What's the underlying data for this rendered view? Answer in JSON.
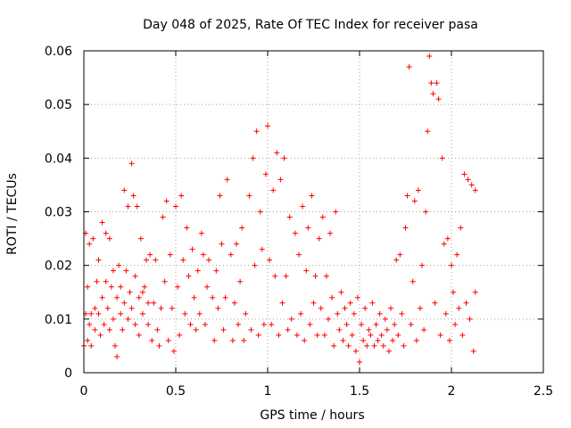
{
  "chart_data": {
    "type": "scatter",
    "title": "Day 048 of 2025, Rate Of TEC Index for receiver pasa",
    "xlabel": "GPS time / hours",
    "ylabel": "ROTI / TECUs",
    "xlim": [
      0,
      2.5
    ],
    "ylim": [
      0,
      0.06
    ],
    "xticks": [
      "0",
      "0.5",
      "1",
      "1.5",
      "2",
      "2.5"
    ],
    "yticks": [
      "0",
      "0.01",
      "0.02",
      "0.03",
      "0.04",
      "0.05",
      "0.06"
    ],
    "grid": true,
    "marker": "plus",
    "color": "#ff0000",
    "series": [
      {
        "points": [
          [
            0.0,
            0.005
          ],
          [
            0.01,
            0.011
          ],
          [
            0.01,
            0.026
          ],
          [
            0.02,
            0.016
          ],
          [
            0.02,
            0.006
          ],
          [
            0.03,
            0.009
          ],
          [
            0.03,
            0.024
          ],
          [
            0.04,
            0.011
          ],
          [
            0.04,
            0.005
          ],
          [
            0.05,
            0.025
          ],
          [
            0.06,
            0.012
          ],
          [
            0.06,
            0.008
          ],
          [
            0.07,
            0.017
          ],
          [
            0.08,
            0.011
          ],
          [
            0.08,
            0.021
          ],
          [
            0.09,
            0.007
          ],
          [
            0.1,
            0.014
          ],
          [
            0.1,
            0.028
          ],
          [
            0.11,
            0.009
          ],
          [
            0.12,
            0.017
          ],
          [
            0.12,
            0.026
          ],
          [
            0.13,
            0.012
          ],
          [
            0.14,
            0.008
          ],
          [
            0.14,
            0.025
          ],
          [
            0.15,
            0.016
          ],
          [
            0.16,
            0.01
          ],
          [
            0.16,
            0.019
          ],
          [
            0.17,
            0.005
          ],
          [
            0.18,
            0.014
          ],
          [
            0.18,
            0.003
          ],
          [
            0.19,
            0.02
          ],
          [
            0.2,
            0.011
          ],
          [
            0.2,
            0.016
          ],
          [
            0.21,
            0.008
          ],
          [
            0.22,
            0.034
          ],
          [
            0.22,
            0.013
          ],
          [
            0.23,
            0.019
          ],
          [
            0.24,
            0.031
          ],
          [
            0.24,
            0.01
          ],
          [
            0.25,
            0.015
          ],
          [
            0.26,
            0.039
          ],
          [
            0.26,
            0.012
          ],
          [
            0.27,
            0.033
          ],
          [
            0.28,
            0.018
          ],
          [
            0.28,
            0.009
          ],
          [
            0.29,
            0.031
          ],
          [
            0.3,
            0.014
          ],
          [
            0.3,
            0.007
          ],
          [
            0.31,
            0.025
          ],
          [
            0.32,
            0.015
          ],
          [
            0.32,
            0.011
          ],
          [
            0.33,
            0.016
          ],
          [
            0.34,
            0.021
          ],
          [
            0.35,
            0.009
          ],
          [
            0.35,
            0.013
          ],
          [
            0.36,
            0.022
          ],
          [
            0.37,
            0.006
          ],
          [
            0.38,
            0.013
          ],
          [
            0.39,
            0.021
          ],
          [
            0.4,
            0.008
          ],
          [
            0.41,
            0.005
          ],
          [
            0.42,
            0.012
          ],
          [
            0.43,
            0.029
          ],
          [
            0.44,
            0.017
          ],
          [
            0.45,
            0.032
          ],
          [
            0.46,
            0.006
          ],
          [
            0.47,
            0.022
          ],
          [
            0.48,
            0.012
          ],
          [
            0.49,
            0.004
          ],
          [
            0.5,
            0.031
          ],
          [
            0.51,
            0.016
          ],
          [
            0.52,
            0.007
          ],
          [
            0.53,
            0.033
          ],
          [
            0.54,
            0.021
          ],
          [
            0.55,
            0.011
          ],
          [
            0.56,
            0.027
          ],
          [
            0.57,
            0.018
          ],
          [
            0.58,
            0.009
          ],
          [
            0.59,
            0.023
          ],
          [
            0.6,
            0.014
          ],
          [
            0.61,
            0.008
          ],
          [
            0.62,
            0.019
          ],
          [
            0.63,
            0.011
          ],
          [
            0.64,
            0.026
          ],
          [
            0.65,
            0.022
          ],
          [
            0.66,
            0.009
          ],
          [
            0.67,
            0.016
          ],
          [
            0.68,
            0.021
          ],
          [
            0.7,
            0.014
          ],
          [
            0.71,
            0.006
          ],
          [
            0.72,
            0.019
          ],
          [
            0.73,
            0.012
          ],
          [
            0.74,
            0.033
          ],
          [
            0.75,
            0.024
          ],
          [
            0.76,
            0.008
          ],
          [
            0.77,
            0.014
          ],
          [
            0.78,
            0.036
          ],
          [
            0.8,
            0.022
          ],
          [
            0.81,
            0.006
          ],
          [
            0.82,
            0.013
          ],
          [
            0.83,
            0.024
          ],
          [
            0.84,
            0.009
          ],
          [
            0.85,
            0.017
          ],
          [
            0.86,
            0.027
          ],
          [
            0.87,
            0.006
          ],
          [
            0.88,
            0.011
          ],
          [
            0.9,
            0.033
          ],
          [
            0.91,
            0.008
          ],
          [
            0.92,
            0.04
          ],
          [
            0.93,
            0.02
          ],
          [
            0.94,
            0.045
          ],
          [
            0.95,
            0.007
          ],
          [
            0.96,
            0.03
          ],
          [
            0.97,
            0.023
          ],
          [
            0.98,
            0.009
          ],
          [
            0.99,
            0.037
          ],
          [
            1.0,
            0.046
          ],
          [
            1.01,
            0.021
          ],
          [
            1.02,
            0.009
          ],
          [
            1.03,
            0.034
          ],
          [
            1.04,
            0.018
          ],
          [
            1.05,
            0.041
          ],
          [
            1.06,
            0.007
          ],
          [
            1.07,
            0.036
          ],
          [
            1.08,
            0.013
          ],
          [
            1.09,
            0.04
          ],
          [
            1.1,
            0.018
          ],
          [
            1.11,
            0.008
          ],
          [
            1.12,
            0.029
          ],
          [
            1.13,
            0.01
          ],
          [
            1.15,
            0.026
          ],
          [
            1.16,
            0.007
          ],
          [
            1.17,
            0.022
          ],
          [
            1.18,
            0.011
          ],
          [
            1.19,
            0.031
          ],
          [
            1.2,
            0.006
          ],
          [
            1.21,
            0.019
          ],
          [
            1.22,
            0.027
          ],
          [
            1.23,
            0.009
          ],
          [
            1.24,
            0.033
          ],
          [
            1.25,
            0.013
          ],
          [
            1.26,
            0.018
          ],
          [
            1.27,
            0.007
          ],
          [
            1.28,
            0.025
          ],
          [
            1.29,
            0.012
          ],
          [
            1.3,
            0.029
          ],
          [
            1.31,
            0.007
          ],
          [
            1.32,
            0.018
          ],
          [
            1.33,
            0.01
          ],
          [
            1.34,
            0.026
          ],
          [
            1.35,
            0.014
          ],
          [
            1.36,
            0.005
          ],
          [
            1.37,
            0.03
          ],
          [
            1.38,
            0.011
          ],
          [
            1.39,
            0.008
          ],
          [
            1.4,
            0.015
          ],
          [
            1.41,
            0.006
          ],
          [
            1.42,
            0.012
          ],
          [
            1.43,
            0.009
          ],
          [
            1.44,
            0.005
          ],
          [
            1.45,
            0.013
          ],
          [
            1.46,
            0.007
          ],
          [
            1.47,
            0.011
          ],
          [
            1.48,
            0.004
          ],
          [
            1.49,
            0.014
          ],
          [
            1.5,
            0.002
          ],
          [
            1.51,
            0.009
          ],
          [
            1.52,
            0.006
          ],
          [
            1.53,
            0.012
          ],
          [
            1.54,
            0.005
          ],
          [
            1.55,
            0.008
          ],
          [
            1.56,
            0.007
          ],
          [
            1.57,
            0.013
          ],
          [
            1.58,
            0.005
          ],
          [
            1.59,
            0.009
          ],
          [
            1.6,
            0.006
          ],
          [
            1.61,
            0.011
          ],
          [
            1.62,
            0.007
          ],
          [
            1.63,
            0.005
          ],
          [
            1.64,
            0.01
          ],
          [
            1.65,
            0.008
          ],
          [
            1.66,
            0.004
          ],
          [
            1.67,
            0.012
          ],
          [
            1.68,
            0.006
          ],
          [
            1.69,
            0.009
          ],
          [
            1.7,
            0.021
          ],
          [
            1.71,
            0.007
          ],
          [
            1.72,
            0.022
          ],
          [
            1.73,
            0.011
          ],
          [
            1.74,
            0.005
          ],
          [
            1.75,
            0.027
          ],
          [
            1.76,
            0.033
          ],
          [
            1.77,
            0.057
          ],
          [
            1.78,
            0.009
          ],
          [
            1.79,
            0.017
          ],
          [
            1.8,
            0.032
          ],
          [
            1.81,
            0.006
          ],
          [
            1.82,
            0.034
          ],
          [
            1.83,
            0.012
          ],
          [
            1.84,
            0.02
          ],
          [
            1.85,
            0.008
          ],
          [
            1.86,
            0.03
          ],
          [
            1.87,
            0.045
          ],
          [
            1.88,
            0.059
          ],
          [
            1.89,
            0.054
          ],
          [
            1.9,
            0.052
          ],
          [
            1.91,
            0.013
          ],
          [
            1.92,
            0.054
          ],
          [
            1.93,
            0.051
          ],
          [
            1.94,
            0.007
          ],
          [
            1.95,
            0.04
          ],
          [
            1.96,
            0.024
          ],
          [
            1.97,
            0.011
          ],
          [
            1.98,
            0.025
          ],
          [
            1.99,
            0.006
          ],
          [
            2.0,
            0.02
          ],
          [
            2.01,
            0.015
          ],
          [
            2.02,
            0.009
          ],
          [
            2.03,
            0.022
          ],
          [
            2.04,
            0.012
          ],
          [
            2.05,
            0.027
          ],
          [
            2.06,
            0.007
          ],
          [
            2.07,
            0.037
          ],
          [
            2.08,
            0.013
          ],
          [
            2.09,
            0.036
          ],
          [
            2.1,
            0.01
          ],
          [
            2.11,
            0.035
          ],
          [
            2.12,
            0.004
          ],
          [
            2.13,
            0.034
          ],
          [
            2.13,
            0.015
          ]
        ]
      }
    ]
  }
}
